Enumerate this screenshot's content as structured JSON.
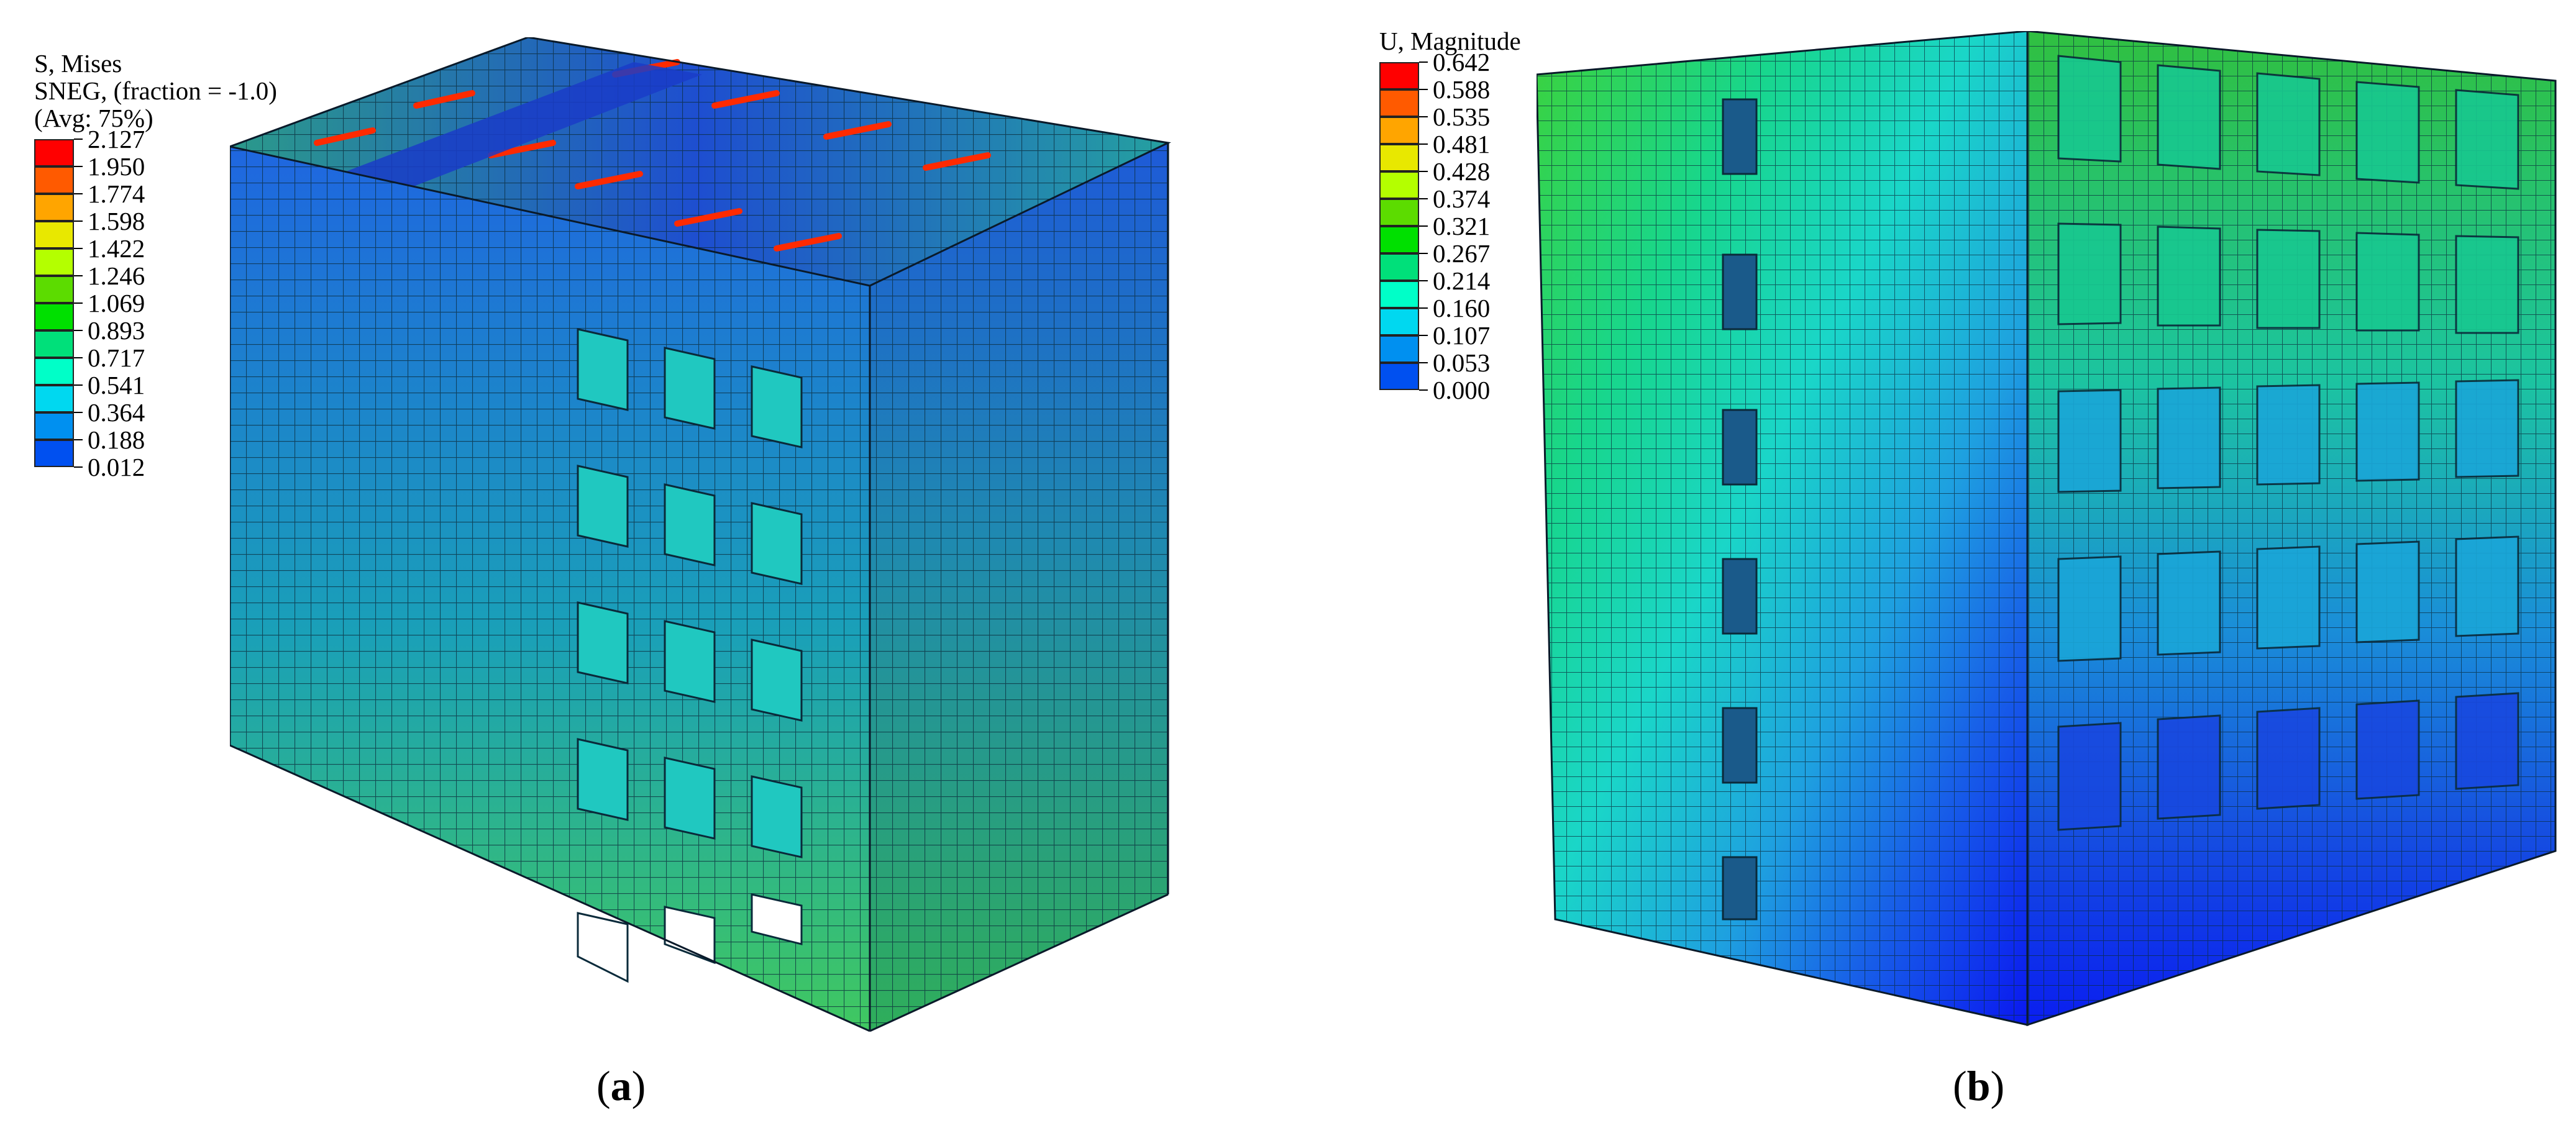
{
  "panel_a": {
    "legend": {
      "title_lines": [
        "S, Mises",
        "SNEG, (fraction = -1.0)",
        "(Avg: 75%)"
      ],
      "values": [
        "2.127",
        "1.950",
        "1.774",
        "1.598",
        "1.422",
        "1.246",
        "1.069",
        "0.893",
        "0.717",
        "0.541",
        "0.364",
        "0.188",
        "0.012"
      ],
      "colors": [
        "#ff0000",
        "#ff5a00",
        "#ffa500",
        "#e8e800",
        "#b4ff00",
        "#5cdc00",
        "#00e000",
        "#00e07a",
        "#00ffc8",
        "#00d8f0",
        "#0090f0",
        "#0050f0",
        "#0000ff"
      ]
    },
    "caption_letter": "a"
  },
  "panel_b": {
    "legend": {
      "title_lines": [
        "U, Magnitude"
      ],
      "values": [
        "0.642",
        "0.588",
        "0.535",
        "0.481",
        "0.428",
        "0.374",
        "0.321",
        "0.267",
        "0.214",
        "0.160",
        "0.107",
        "0.053",
        "0.000"
      ],
      "colors": [
        "#ff0000",
        "#ff5a00",
        "#ffa500",
        "#e8e800",
        "#b4ff00",
        "#5cdc00",
        "#00e000",
        "#00e07a",
        "#00ffc8",
        "#00d8f0",
        "#0090f0",
        "#0050f0",
        "#0000ff"
      ]
    },
    "caption_letter": "b"
  }
}
